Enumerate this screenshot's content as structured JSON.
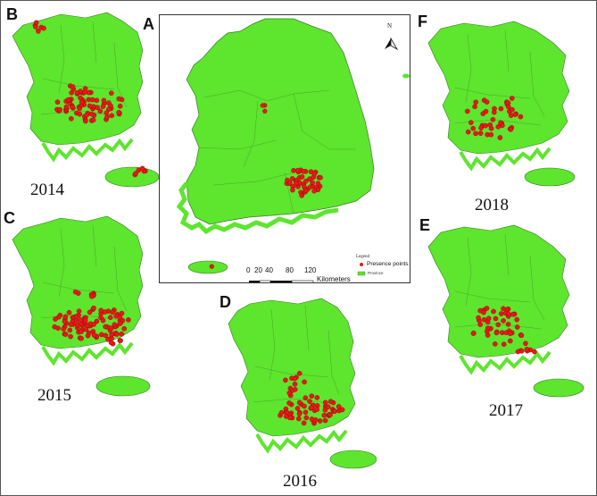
{
  "panels": {
    "A": "A",
    "B": "B",
    "C": "C",
    "D": "D",
    "E": "E",
    "F": "F"
  },
  "years": {
    "B": "2014",
    "C": "2015",
    "D": "2016",
    "E": "2017",
    "F": "2018"
  },
  "legend": {
    "title": "Legend",
    "presence": "Presence points",
    "province": "Province"
  },
  "scale": {
    "ticks": [
      "0",
      "20",
      "40",
      "80",
      "120"
    ],
    "unit": "Kilometers"
  },
  "north_label": "N",
  "colors": {
    "land": "#5ee52e",
    "border": "#3a7a25",
    "point": "#e81818",
    "point_edge": "#8a0000"
  }
}
